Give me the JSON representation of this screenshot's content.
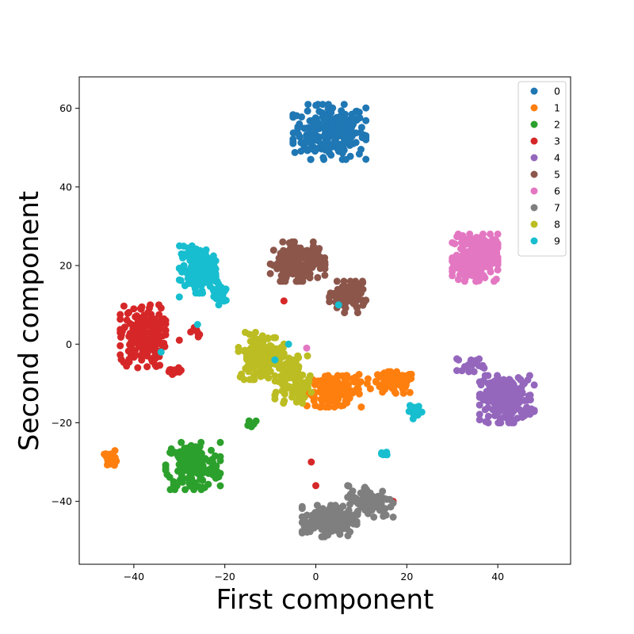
{
  "chart_data": {
    "type": "scatter",
    "title": "",
    "xlabel": "First component",
    "ylabel": "Second component",
    "xlim": [
      -52,
      56
    ],
    "ylim": [
      -56,
      68
    ],
    "xticks": [
      -40,
      -20,
      0,
      20,
      40
    ],
    "yticks": [
      -40,
      -20,
      0,
      20,
      40,
      60
    ],
    "xtick_labels": [
      "−40",
      "−20",
      "0",
      "20",
      "40"
    ],
    "ytick_labels": [
      "−40",
      "−20",
      "0",
      "20",
      "40",
      "60"
    ],
    "grid": false,
    "legend_position": "top-right",
    "series": [
      {
        "name": "0",
        "color": "#1f77b4",
        "clusters": [
          [
            3,
            54,
            8,
            7,
            240
          ]
        ]
      },
      {
        "name": "1",
        "color": "#ff7f0e",
        "clusters": [
          [
            4,
            -12,
            6,
            4,
            130
          ],
          [
            17,
            -10,
            5,
            3,
            70
          ],
          [
            9,
            -9,
            5,
            2,
            20
          ],
          [
            -45,
            -29,
            1.5,
            2,
            22
          ]
        ]
      },
      {
        "name": "2",
        "color": "#2ca02c",
        "clusters": [
          [
            -27,
            -31,
            6,
            6,
            170
          ],
          [
            -14,
            -20,
            1.5,
            1,
            8
          ]
        ]
      },
      {
        "name": "3",
        "color": "#d62728",
        "clusters": [
          [
            -38,
            2,
            5,
            8,
            190
          ],
          [
            -31,
            -7,
            2,
            1,
            12
          ],
          [
            -26,
            3,
            1.5,
            1.5,
            8
          ]
        ],
        "points": [
          [
            -7,
            11
          ],
          [
            -30,
            1
          ],
          [
            -1,
            -30
          ],
          [
            0,
            -36
          ],
          [
            17,
            -40
          ]
        ]
      },
      {
        "name": "4",
        "color": "#9467bd",
        "clusters": [
          [
            42,
            -14,
            6,
            6,
            210
          ],
          [
            34,
            -5,
            3,
            2,
            20
          ]
        ]
      },
      {
        "name": "5",
        "color": "#8c564b",
        "clusters": [
          [
            -4,
            21,
            6,
            5,
            150
          ],
          [
            7,
            12,
            4,
            4,
            90
          ]
        ]
      },
      {
        "name": "6",
        "color": "#e377c2",
        "clusters": [
          [
            35,
            22,
            5,
            6,
            220
          ]
        ],
        "points": [
          [
            -2,
            -1
          ]
        ]
      },
      {
        "name": "7",
        "color": "#7f7f7f",
        "clusters": [
          [
            3,
            -45,
            6,
            4,
            150
          ],
          [
            12,
            -40,
            5,
            4,
            100
          ]
        ]
      },
      {
        "name": "8",
        "color": "#bcbd22",
        "clusters": [
          [
            -12,
            -3,
            5,
            6,
            160
          ],
          [
            -5,
            -9,
            4,
            6,
            90
          ]
        ]
      },
      {
        "name": "9",
        "color": "#17becf",
        "clusters": [
          [
            -26,
            19,
            4,
            6,
            160
          ],
          [
            -21,
            13,
            2,
            3,
            30
          ],
          [
            22,
            -17,
            1.5,
            2,
            15
          ],
          [
            15,
            -28,
            1.5,
            1,
            8
          ]
        ],
        "points": [
          [
            -34,
            -2
          ],
          [
            -26,
            5
          ],
          [
            -6,
            0
          ],
          [
            -9,
            -4
          ],
          [
            5,
            10
          ],
          [
            -30,
            12
          ]
        ]
      }
    ]
  }
}
